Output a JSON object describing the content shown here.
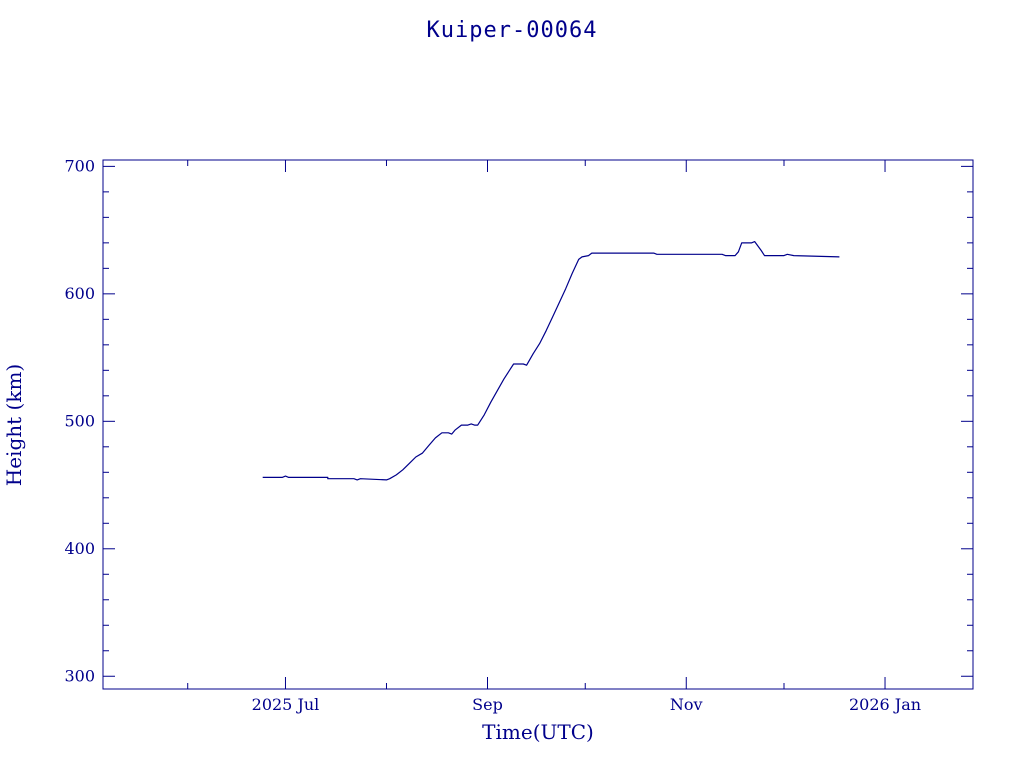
{
  "chart_data": {
    "type": "line",
    "title": "Kuiper-00064",
    "xlabel": "Time(UTC)",
    "ylabel": "Height (km)",
    "color": "#00008b",
    "x_axis_type": "date",
    "xlim": [
      "2025-05-06",
      "2026-01-28"
    ],
    "ylim": [
      290,
      705
    ],
    "xticks": [
      {
        "date": "2025-07-01",
        "label": "2025 Jul"
      },
      {
        "date": "2025-09-01",
        "label": "Sep"
      },
      {
        "date": "2025-11-01",
        "label": "Nov"
      },
      {
        "date": "2026-01-01",
        "label": "2026 Jan"
      }
    ],
    "x_minor_ticks": [
      "2025-06-01",
      "2025-08-01",
      "2025-10-01",
      "2025-12-01"
    ],
    "yticks": [
      {
        "value": 300,
        "label": "300"
      },
      {
        "value": 400,
        "label": "400"
      },
      {
        "value": 500,
        "label": "500"
      },
      {
        "value": 600,
        "label": "600"
      },
      {
        "value": 700,
        "label": "700"
      }
    ],
    "y_minor_step": 20,
    "grid": false,
    "series": [
      {
        "points": [
          [
            "2025-06-24",
            456
          ],
          [
            "2025-06-30",
            456
          ],
          [
            "2025-07-01",
            457
          ],
          [
            "2025-07-02",
            456
          ],
          [
            "2025-07-14",
            456
          ],
          [
            "2025-07-14",
            455
          ],
          [
            "2025-07-22",
            455
          ],
          [
            "2025-07-23",
            454
          ],
          [
            "2025-07-24",
            455
          ],
          [
            "2025-08-01",
            454
          ],
          [
            "2025-08-02",
            455
          ],
          [
            "2025-08-04",
            458
          ],
          [
            "2025-08-06",
            462
          ],
          [
            "2025-08-08",
            467
          ],
          [
            "2025-08-10",
            472
          ],
          [
            "2025-08-12",
            475
          ],
          [
            "2025-08-14",
            481
          ],
          [
            "2025-08-16",
            487
          ],
          [
            "2025-08-18",
            491
          ],
          [
            "2025-08-20",
            491
          ],
          [
            "2025-08-21",
            490
          ],
          [
            "2025-08-22",
            493
          ],
          [
            "2025-08-24",
            497
          ],
          [
            "2025-08-26",
            497
          ],
          [
            "2025-08-27",
            498
          ],
          [
            "2025-08-28",
            497
          ],
          [
            "2025-08-29",
            497
          ],
          [
            "2025-08-31",
            505
          ],
          [
            "2025-09-02",
            515
          ],
          [
            "2025-09-04",
            524
          ],
          [
            "2025-09-06",
            533
          ],
          [
            "2025-09-08",
            541
          ],
          [
            "2025-09-09",
            545
          ],
          [
            "2025-09-12",
            545
          ],
          [
            "2025-09-13",
            544
          ],
          [
            "2025-09-15",
            553
          ],
          [
            "2025-09-17",
            561
          ],
          [
            "2025-09-19",
            571
          ],
          [
            "2025-09-21",
            582
          ],
          [
            "2025-09-23",
            593
          ],
          [
            "2025-09-25",
            604
          ],
          [
            "2025-09-27",
            616
          ],
          [
            "2025-09-29",
            627
          ],
          [
            "2025-09-30",
            629
          ],
          [
            "2025-10-02",
            630
          ],
          [
            "2025-10-03",
            632
          ],
          [
            "2025-10-05",
            632
          ],
          [
            "2025-10-15",
            632
          ],
          [
            "2025-10-22",
            632
          ],
          [
            "2025-10-23",
            631
          ],
          [
            "2025-10-28",
            631
          ],
          [
            "2025-10-29",
            631
          ],
          [
            "2025-11-01",
            631
          ],
          [
            "2025-11-12",
            631
          ],
          [
            "2025-11-13",
            630
          ],
          [
            "2025-11-16",
            630
          ],
          [
            "2025-11-17",
            633
          ],
          [
            "2025-11-18",
            640
          ],
          [
            "2025-11-21",
            640
          ],
          [
            "2025-11-22",
            641
          ],
          [
            "2025-11-24",
            634
          ],
          [
            "2025-11-25",
            630
          ],
          [
            "2025-11-28",
            630
          ],
          [
            "2025-12-01",
            630
          ],
          [
            "2025-12-02",
            631
          ],
          [
            "2025-12-04",
            630
          ],
          [
            "2025-12-18",
            629
          ]
        ]
      }
    ]
  }
}
